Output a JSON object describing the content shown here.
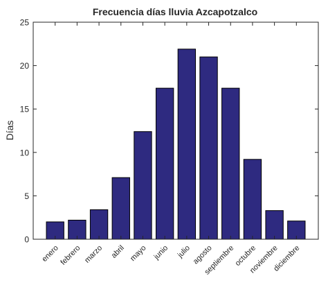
{
  "chart_data": {
    "type": "bar",
    "title": "Frecuencia días lluvia Azcapotzalco",
    "xlabel": "",
    "ylabel": "Días",
    "categories": [
      "enero",
      "febrero",
      "marzo",
      "abril",
      "mayo",
      "junio",
      "julio",
      "agosto",
      "septiembre",
      "octubre",
      "noviembre",
      "diciembre"
    ],
    "values": [
      2.0,
      2.2,
      3.4,
      7.1,
      12.4,
      17.4,
      21.9,
      21.0,
      17.4,
      9.2,
      3.3,
      2.1
    ],
    "ylim": [
      0,
      25
    ],
    "yticks": [
      0,
      5,
      10,
      15,
      20,
      25
    ],
    "grid": false,
    "colors": {
      "bar_fill": "#2e2a80",
      "bar_stroke": "#000000",
      "axis": "#262626",
      "text": "#262626"
    }
  }
}
